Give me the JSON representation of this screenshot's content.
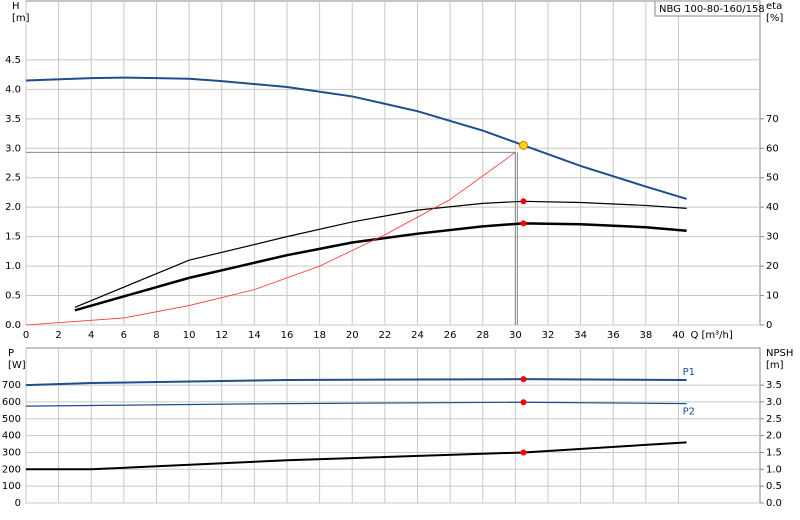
{
  "chart_data": [
    {
      "type": "line",
      "title": "NBG 100-80-160/158",
      "y_label": [
        "H",
        "[m]"
      ],
      "y2_label": [
        "eta",
        "[%]"
      ],
      "x_label": "Q [m³/h]",
      "xlim": [
        0,
        45
      ],
      "xticks": [
        0,
        2,
        4,
        6,
        8,
        10,
        12,
        14,
        16,
        18,
        20,
        22,
        24,
        26,
        28,
        30,
        32,
        34,
        36,
        38,
        40
      ],
      "ylim": [
        0,
        5.5
      ],
      "yticks": [
        {
          "value": 0,
          "label": "0.0"
        },
        0.5,
        {
          "value": 1,
          "label": "1.0"
        },
        1.5,
        {
          "value": 2,
          "label": "2.0"
        },
        2.5,
        {
          "value": 3,
          "label": "3.0"
        },
        3.5,
        {
          "value": 4,
          "label": "4.0"
        },
        4.5
      ],
      "y2lim": [
        0,
        110
      ],
      "y2ticks": [
        0,
        10,
        20,
        30,
        40,
        50,
        60,
        70
      ],
      "grid": true,
      "guide": {
        "x": 30,
        "y": 2.93
      },
      "series": [
        {
          "color": "#1f4e8c",
          "width": 2,
          "x": [
            0,
            4,
            6,
            8,
            10,
            12,
            16,
            20,
            24,
            28,
            30.5,
            34,
            38,
            40.5
          ],
          "values": [
            4.15,
            4.19,
            4.2,
            4.19,
            4.18,
            4.14,
            4.04,
            3.88,
            3.63,
            3.3,
            3.05,
            2.7,
            2.35,
            2.14
          ],
          "point_x": 30.5,
          "point_value": 3.05,
          "point_color": "#ffd400"
        },
        {
          "color": "#000000",
          "width": 1.2,
          "axis": "y2",
          "x": [
            3,
            10,
            16,
            20,
            24,
            28,
            30.5,
            34,
            38,
            40.5
          ],
          "values": [
            6,
            22,
            30,
            35,
            39,
            41.3,
            42,
            41.6,
            40.6,
            39.6
          ],
          "point_x": 30.5,
          "point_value": 42,
          "point_color": "#ff0000"
        },
        {
          "color": "#000000",
          "width": 2.5,
          "axis": "y2",
          "x": [
            3,
            10,
            16,
            20,
            24,
            28,
            30.5,
            34,
            38,
            40.5
          ],
          "values": [
            5,
            16,
            23.7,
            28,
            31,
            33.5,
            34.5,
            34.2,
            33.2,
            32
          ],
          "point_x": 30.5,
          "point_value": 34.5,
          "point_color": "#ff0000"
        },
        {
          "color": "#ff3030",
          "width": 0.8,
          "x": [
            0,
            6,
            10,
            14,
            18,
            22,
            26,
            30
          ],
          "values": [
            0,
            0.12,
            0.33,
            0.6,
            1.0,
            1.53,
            2.13,
            2.93
          ]
        }
      ]
    },
    {
      "type": "line",
      "y_label": [
        "P",
        "[W]"
      ],
      "y2_label": [
        "NPSH",
        "[m]"
      ],
      "xlim": [
        0,
        45
      ],
      "xticks": [
        0,
        2,
        4,
        6,
        8,
        10,
        12,
        14,
        16,
        18,
        20,
        22,
        24,
        26,
        28,
        30,
        32,
        34,
        36,
        38,
        40
      ],
      "ylim": [
        0,
        920
      ],
      "yticks": [
        0,
        100,
        200,
        300,
        400,
        500,
        600,
        700
      ],
      "y2lim": [
        0,
        4.6
      ],
      "y2ticks": [
        {
          "value": 0,
          "label": "0.0"
        },
        0.5,
        {
          "value": 1,
          "label": "1.0"
        },
        1.5,
        {
          "value": 2,
          "label": "2.0"
        },
        2.5,
        {
          "value": 3,
          "label": "3.0"
        },
        3.5
      ],
      "grid": true,
      "series": [
        {
          "name": "P1",
          "color": "#1f4e8c",
          "width": 2,
          "x": [
            0,
            4,
            16,
            30.5,
            40.5
          ],
          "values": [
            700,
            712,
            730,
            735,
            730
          ],
          "point_x": 30.5,
          "point_value": 735,
          "point_color": "#ff0000",
          "label_side": "above"
        },
        {
          "name": "P2",
          "color": "#1f4e8c",
          "width": 1.2,
          "x": [
            0,
            16,
            30.5,
            40.5
          ],
          "values": [
            575,
            590,
            598,
            590
          ],
          "point_x": 30.5,
          "point_value": 598,
          "point_color": "#ff0000",
          "label_side": "below"
        },
        {
          "color": "#000000",
          "width": 2,
          "axis": "y2",
          "x": [
            0,
            4,
            16,
            30.5,
            40.5
          ],
          "values": [
            1.0,
            1.0,
            1.27,
            1.5,
            1.8
          ],
          "point_x": 30.5,
          "point_value": 1.5,
          "point_color": "#ff0000"
        }
      ]
    }
  ]
}
